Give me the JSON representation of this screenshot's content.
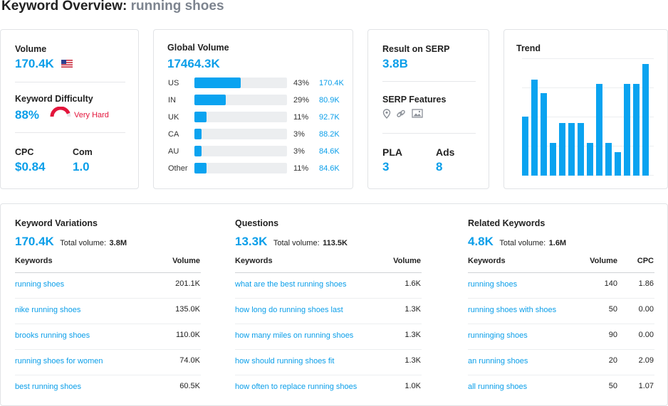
{
  "title": {
    "prefix": "Keyword Overview:",
    "keyword": "running shoes"
  },
  "overview": {
    "volume_label": "Volume",
    "volume_value": "170.4K",
    "volume_flag_icon": "us-flag-icon",
    "kd_label": "Keyword Difficulty",
    "kd_value": "88%",
    "kd_level": 0.88,
    "kd_text": "Very Hard",
    "cpc_label": "CPC",
    "cpc_value": "$0.84",
    "com_label": "Com",
    "com_value": "1.0"
  },
  "global": {
    "label": "Global Volume",
    "value": "17464.3K",
    "rows": [
      {
        "country": "US",
        "share": 0.43,
        "pct": "43%",
        "value": "170.4K"
      },
      {
        "country": "IN",
        "share": 0.29,
        "pct": "29%",
        "value": "80.9K"
      },
      {
        "country": "UK",
        "share": 0.11,
        "pct": "11%",
        "value": "92.7K"
      },
      {
        "country": "CA",
        "share": 0.03,
        "pct": "3%",
        "value": "88.2K"
      },
      {
        "country": "AU",
        "share": 0.03,
        "pct": "3%",
        "value": "84.6K"
      },
      {
        "country": "Other",
        "share": 0.11,
        "pct": "11%",
        "value": "84.6K"
      }
    ]
  },
  "serp": {
    "results_label": "Result on SERP",
    "results_value": "3.8B",
    "features_label": "SERP Features",
    "feature_icons": [
      "map-pin-icon",
      "link-icon",
      "image-icon"
    ],
    "pla_label": "PLA",
    "pla_value": "3",
    "ads_label": "Ads",
    "ads_value": "8"
  },
  "trend": {
    "label": "Trend",
    "values": [
      0.53,
      0.86,
      0.74,
      0.29,
      0.47,
      0.47,
      0.47,
      0.29,
      0.82,
      0.29,
      0.21,
      0.82,
      0.82,
      1.0
    ]
  },
  "variations": {
    "title": "Keyword Variations",
    "count": "170.4K",
    "total_label": "Total volume:",
    "total_value": "3.8M",
    "col_keywords": "Keywords",
    "col_volume": "Volume",
    "rows": [
      {
        "keyword": "running shoes",
        "volume": "201.1K"
      },
      {
        "keyword": "nike running shoes",
        "volume": "135.0K"
      },
      {
        "keyword": "brooks running shoes",
        "volume": "110.0K"
      },
      {
        "keyword": "running shoes for women",
        "volume": "74.0K"
      },
      {
        "keyword": "best running shoes",
        "volume": "60.5K"
      }
    ]
  },
  "questions": {
    "title": "Questions",
    "count": "13.3K",
    "total_label": "Total volume:",
    "total_value": "113.5K",
    "col_keywords": "Keywords",
    "col_volume": "Volume",
    "rows": [
      {
        "keyword": "what are the best running shoes",
        "volume": "1.6K"
      },
      {
        "keyword": "how long do running shoes last",
        "volume": "1.3K"
      },
      {
        "keyword": "how many miles on running shoes",
        "volume": "1.3K"
      },
      {
        "keyword": "how should running shoes fit",
        "volume": "1.3K"
      },
      {
        "keyword": "how often to replace running shoes",
        "volume": "1.0K"
      }
    ]
  },
  "related": {
    "title": "Related Keywords",
    "count": "4.8K",
    "total_label": "Total volume:",
    "total_value": "1.6M",
    "col_keywords": "Keywords",
    "col_volume": "Volume",
    "col_cpc": "CPC",
    "rows": [
      {
        "keyword": "running shoes",
        "volume": "140",
        "cpc": "1.86"
      },
      {
        "keyword": "running shoes with shoes",
        "volume": "50",
        "cpc": "0.00"
      },
      {
        "keyword": "runninging shoes",
        "volume": "90",
        "cpc": "0.00"
      },
      {
        "keyword": "an running shoes",
        "volume": "20",
        "cpc": "2.09"
      },
      {
        "keyword": "all running shoes",
        "volume": "50",
        "cpc": "1.07"
      }
    ]
  }
}
